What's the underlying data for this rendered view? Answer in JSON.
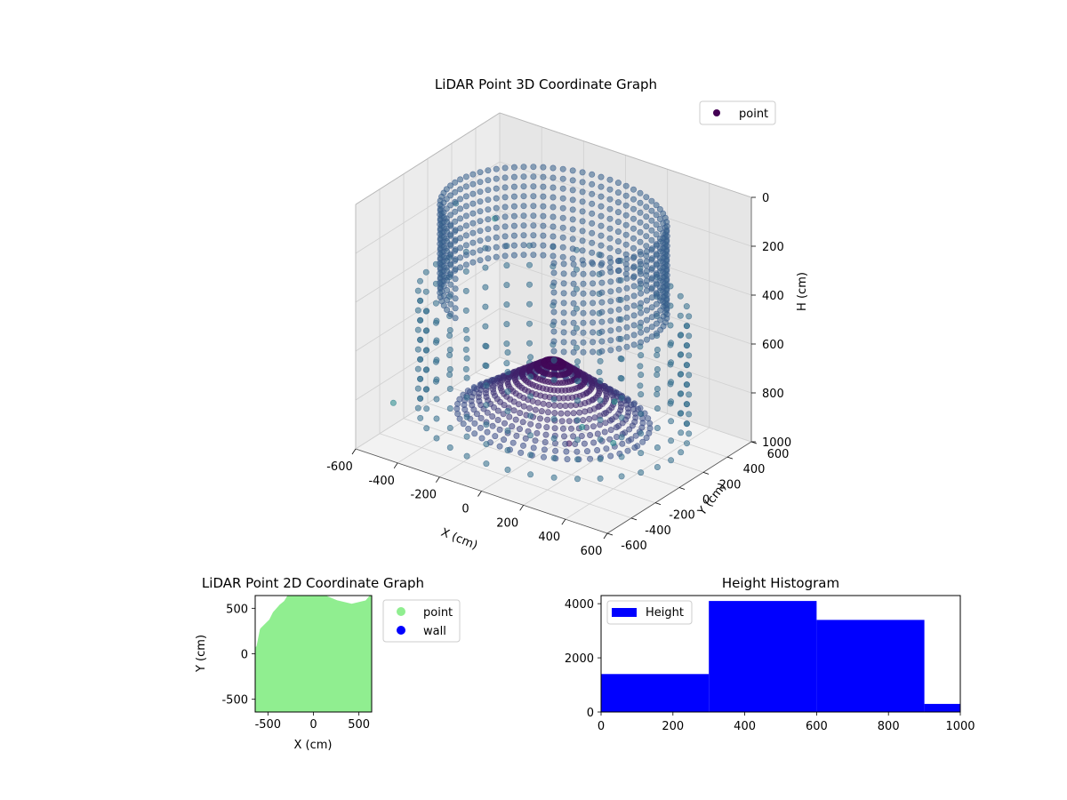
{
  "chart_data": [
    {
      "type": "scatter",
      "title": "LiDAR Point 3D Coordinate Graph",
      "xlabel": "X (cm)",
      "ylabel": "Y (cm)",
      "zlabel": "H (cm)",
      "xlim": [
        -600,
        600
      ],
      "ylim": [
        -600,
        600
      ],
      "zlim": [
        0,
        1000
      ],
      "z_inverted": true,
      "x_ticks": [
        "-600",
        "-400",
        "-200",
        "0",
        "200",
        "400",
        "600"
      ],
      "y_ticks": [
        "-600",
        "-400",
        "-200",
        "0",
        "200",
        "400",
        "600"
      ],
      "z_ticks": [
        "0",
        "200",
        "400",
        "600",
        "800",
        "1000"
      ],
      "colormap": "viridis",
      "legend": {
        "placement": "top-right",
        "entries": [
          {
            "label": "point",
            "color": "#440154"
          }
        ]
      },
      "series": [
        {
          "name": "point",
          "shapes": [
            {
              "shape": "wall-ring",
              "radius": 470,
              "h_top": 60,
              "h_bottom": 420,
              "theta_start": 300,
              "theta_end": 600
            },
            {
              "shape": "floor-cone",
              "max_radius": 420,
              "h_center": 640,
              "h_edge": 900
            },
            {
              "shape": "outer-band",
              "radius": 560,
              "h_top": 420,
              "h_bottom": 900
            }
          ],
          "stray_points": [
            {
              "x": -600,
              "y": 560,
              "h": 420
            },
            {
              "x": 480,
              "y": -600,
              "h": 600
            },
            {
              "x": 600,
              "y": -540,
              "h": 480
            },
            {
              "x": -420,
              "y": -600,
              "h": 760
            },
            {
              "x": 40,
              "y": 60,
              "h": 1000
            },
            {
              "x": 560,
              "y": -480,
              "h": 680
            },
            {
              "x": -580,
              "y": 200,
              "h": 240
            }
          ]
        }
      ]
    },
    {
      "type": "scatter",
      "title": "LiDAR Point 2D Coordinate Graph",
      "xlabel": "X (cm)",
      "ylabel": "Y (cm)",
      "xlim": [
        -640,
        640
      ],
      "ylim": [
        -640,
        640
      ],
      "x_ticks": [
        "-500",
        "0",
        "500"
      ],
      "y_ticks": [
        "-500",
        "0",
        "500"
      ],
      "legend": {
        "placement": "outside-right",
        "entries": [
          {
            "label": "point",
            "color": "#90ee90"
          },
          {
            "label": "wall",
            "color": "#0000ff"
          }
        ]
      },
      "series": [
        {
          "name": "point",
          "color": "#90ee90",
          "region_outline": [
            [
              -640,
              -640
            ],
            [
              640,
              -640
            ],
            [
              640,
              620
            ],
            [
              590,
              560
            ],
            [
              420,
              520
            ],
            [
              250,
              560
            ],
            [
              60,
              640
            ],
            [
              -160,
              640
            ],
            [
              -250,
              640
            ],
            [
              -300,
              560
            ],
            [
              -350,
              520
            ],
            [
              -420,
              440
            ],
            [
              -460,
              360
            ],
            [
              -560,
              260
            ],
            [
              -600,
              60
            ],
            [
              -640,
              40
            ]
          ]
        },
        {
          "name": "wall",
          "color": "#0000ff",
          "points": []
        }
      ]
    },
    {
      "type": "bar",
      "title": "Height Histogram",
      "xlim": [
        0,
        1000
      ],
      "ylim": [
        0,
        4300
      ],
      "x_ticks": [
        "0",
        "200",
        "400",
        "600",
        "800",
        "1000"
      ],
      "y_ticks": [
        "0",
        "2000",
        "4000"
      ],
      "legend": {
        "placement": "top-left",
        "entries": [
          {
            "label": "Height",
            "color": "#0000ff"
          }
        ]
      },
      "series": [
        {
          "name": "Height",
          "color": "#0000ff",
          "bins": [
            0,
            300,
            600,
            900,
            1000
          ],
          "values": [
            1400,
            4100,
            3400,
            300
          ]
        }
      ]
    }
  ]
}
